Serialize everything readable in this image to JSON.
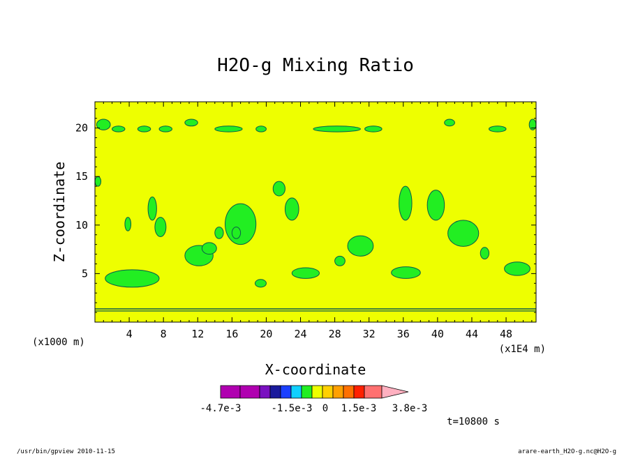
{
  "chart_data": {
    "type": "heatmap",
    "title": "H2O-g Mixing Ratio",
    "xlabel": "X-coordinate",
    "ylabel": "Z-coordinate",
    "x_unit_left": "(x1000 m)",
    "x_unit_right": "(x1E4 m)",
    "xlim": [
      0,
      51.5
    ],
    "ylim": [
      0,
      22.7
    ],
    "xticks": [
      "4",
      "8",
      "12",
      "16",
      "20",
      "24",
      "28",
      "32",
      "36",
      "40",
      "44",
      "48"
    ],
    "yticks": [
      "5",
      "10",
      "15",
      "20"
    ],
    "xtick_values": [
      4,
      8,
      12,
      16,
      20,
      24,
      28,
      32,
      36,
      40,
      44,
      48
    ],
    "ytick_values": [
      5,
      10,
      15,
      20
    ],
    "background_color": "#eeff00",
    "anomaly_color": "#22ee22",
    "contour_color": "#0a5a4a",
    "time_label": "t=10800 s",
    "colorbar": {
      "colors": [
        "#b000b0",
        "#b000b0",
        "#7a10c0",
        "#1a1a9c",
        "#1a40ff",
        "#10d0ff",
        "#22ee22",
        "#eeff00",
        "#ffd000",
        "#ffa000",
        "#ff7000",
        "#ff2000",
        "#ff7070",
        "#ffb0c0"
      ],
      "labels": [
        "-4.7e-3",
        "-1.5e-3",
        "0",
        "1.5e-3",
        "3.8e-3"
      ]
    },
    "regions": [
      {
        "x": [
          0.2,
          1.8
        ],
        "z": [
          19.8,
          20.9
        ]
      },
      {
        "x": [
          2.0,
          3.5
        ],
        "z": [
          19.6,
          20.2
        ]
      },
      {
        "x": [
          5.0,
          6.5
        ],
        "z": [
          19.6,
          20.2
        ]
      },
      {
        "x": [
          7.5,
          9.0
        ],
        "z": [
          19.6,
          20.2
        ]
      },
      {
        "x": [
          10.5,
          12.0
        ],
        "z": [
          20.2,
          20.9
        ]
      },
      {
        "x": [
          14.0,
          17.2
        ],
        "z": [
          19.6,
          20.2
        ]
      },
      {
        "x": [
          18.8,
          20.0
        ],
        "z": [
          19.6,
          20.2
        ]
      },
      {
        "x": [
          25.5,
          31.0
        ],
        "z": [
          19.6,
          20.2
        ]
      },
      {
        "x": [
          31.5,
          33.5
        ],
        "z": [
          19.6,
          20.2
        ]
      },
      {
        "x": [
          40.8,
          42.0
        ],
        "z": [
          20.2,
          20.9
        ]
      },
      {
        "x": [
          46.0,
          48.0
        ],
        "z": [
          19.6,
          20.2
        ]
      },
      {
        "x": [
          6.2,
          7.2
        ],
        "z": [
          10.5,
          12.9
        ]
      },
      {
        "x": [
          3.5,
          4.2
        ],
        "z": [
          9.4,
          10.8
        ]
      },
      {
        "x": [
          7.0,
          8.3
        ],
        "z": [
          8.8,
          10.8
        ]
      },
      {
        "x": [
          15.2,
          18.8
        ],
        "z": [
          8.0,
          12.2
        ]
      },
      {
        "x": [
          20.8,
          22.2
        ],
        "z": [
          13.0,
          14.5
        ]
      },
      {
        "x": [
          22.2,
          23.8
        ],
        "z": [
          10.5,
          12.8
        ]
      },
      {
        "x": [
          10.5,
          13.8
        ],
        "z": [
          5.8,
          7.9
        ]
      },
      {
        "x": [
          12.5,
          14.2
        ],
        "z": [
          7.0,
          8.2
        ]
      },
      {
        "x": [
          14.0,
          15.0
        ],
        "z": [
          8.6,
          9.8
        ]
      },
      {
        "x": [
          16.0,
          17.0
        ],
        "z": [
          8.6,
          9.8
        ]
      },
      {
        "x": [
          1.2,
          7.5
        ],
        "z": [
          3.6,
          5.4
        ]
      },
      {
        "x": [
          18.7,
          20.0
        ],
        "z": [
          3.6,
          4.4
        ]
      },
      {
        "x": [
          23.0,
          26.2
        ],
        "z": [
          4.5,
          5.6
        ]
      },
      {
        "x": [
          28.0,
          29.2
        ],
        "z": [
          5.8,
          6.8
        ]
      },
      {
        "x": [
          29.5,
          32.5
        ],
        "z": [
          6.8,
          8.9
        ]
      },
      {
        "x": [
          34.6,
          38.0
        ],
        "z": [
          4.5,
          5.7
        ]
      },
      {
        "x": [
          35.5,
          37.0
        ],
        "z": [
          10.5,
          14.0
        ]
      },
      {
        "x": [
          38.8,
          40.8
        ],
        "z": [
          10.5,
          13.6
        ]
      },
      {
        "x": [
          41.2,
          44.8
        ],
        "z": [
          7.8,
          10.5
        ]
      },
      {
        "x": [
          45.0,
          46.0
        ],
        "z": [
          6.5,
          7.7
        ]
      },
      {
        "x": [
          47.8,
          50.8
        ],
        "z": [
          4.8,
          6.2
        ]
      },
      {
        "x": [
          0.0,
          0.7
        ],
        "z": [
          14.0,
          15.0
        ]
      },
      {
        "x": [
          50.7,
          51.5
        ],
        "z": [
          19.8,
          20.9
        ]
      }
    ]
  },
  "footer": {
    "left": "/usr/bin/gpview  2010-11-15",
    "right": "arare-earth_H2O-g.nc@H2O-g"
  }
}
